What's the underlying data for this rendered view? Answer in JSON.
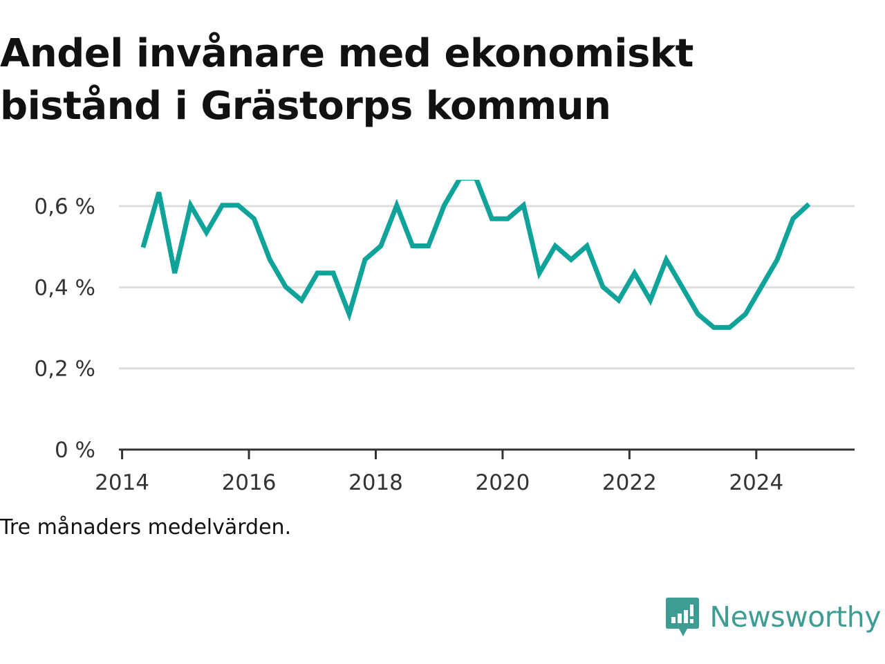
{
  "title_lines": [
    "Andel invånare med ekonomiskt",
    "bistånd i Grästorps kommun"
  ],
  "caption": "Tre månaders medelvärden.",
  "brand": {
    "name": "Newsworthy",
    "icon": "newsworthy-logo-icon",
    "color": "#3d9d95"
  },
  "colors": {
    "line": "#0fa39a",
    "grid": "#dddddd",
    "axis": "#333333",
    "text": "#333333"
  },
  "chart_data": {
    "type": "line",
    "title": "Andel invånare med ekonomiskt bistånd i Grästorps kommun",
    "xlabel": "",
    "ylabel": "",
    "xlim": [
      2013.95,
      2025.55
    ],
    "ylim": [
      0,
      0.6
    ],
    "y_ticks": [
      0,
      0.2,
      0.4,
      0.6
    ],
    "y_tick_labels": [
      "0 %",
      "0,2 %",
      "0,4 %",
      "0,6 %"
    ],
    "x_ticks": [
      2014,
      2016,
      2018,
      2020,
      2022,
      2024
    ],
    "x_tick_labels": [
      "2014",
      "2016",
      "2018",
      "2020",
      "2022",
      "2024"
    ],
    "grid": true,
    "legend": "none",
    "series": [
      {
        "x": [
          2014.33,
          2014.58,
          2014.83,
          2015.08,
          2015.33,
          2015.58,
          2015.83,
          2016.08,
          2016.33,
          2016.58,
          2016.83,
          2017.08,
          2017.33,
          2017.58,
          2017.83,
          2018.08,
          2018.33,
          2018.58,
          2018.83,
          2019.08,
          2019.33,
          2019.58,
          2019.83,
          2020.08,
          2020.33,
          2020.58,
          2020.83,
          2021.08,
          2021.33,
          2021.58,
          2021.83,
          2022.08,
          2022.33,
          2022.58,
          2022.83,
          2023.08,
          2023.33,
          2023.58,
          2023.83,
          2024.08,
          2024.33,
          2024.58,
          2024.83
        ],
        "y": [
          0.498,
          0.634,
          0.435,
          0.602,
          0.535,
          0.602,
          0.602,
          0.569,
          0.468,
          0.401,
          0.368,
          0.435,
          0.435,
          0.334,
          0.468,
          0.502,
          0.602,
          0.502,
          0.502,
          0.602,
          0.669,
          0.669,
          0.569,
          0.569,
          0.602,
          0.435,
          0.502,
          0.468,
          0.502,
          0.401,
          0.368,
          0.435,
          0.368,
          0.468,
          0.401,
          0.334,
          0.301,
          0.301,
          0.334,
          0.401,
          0.468,
          0.569,
          0.605
        ]
      }
    ]
  }
}
